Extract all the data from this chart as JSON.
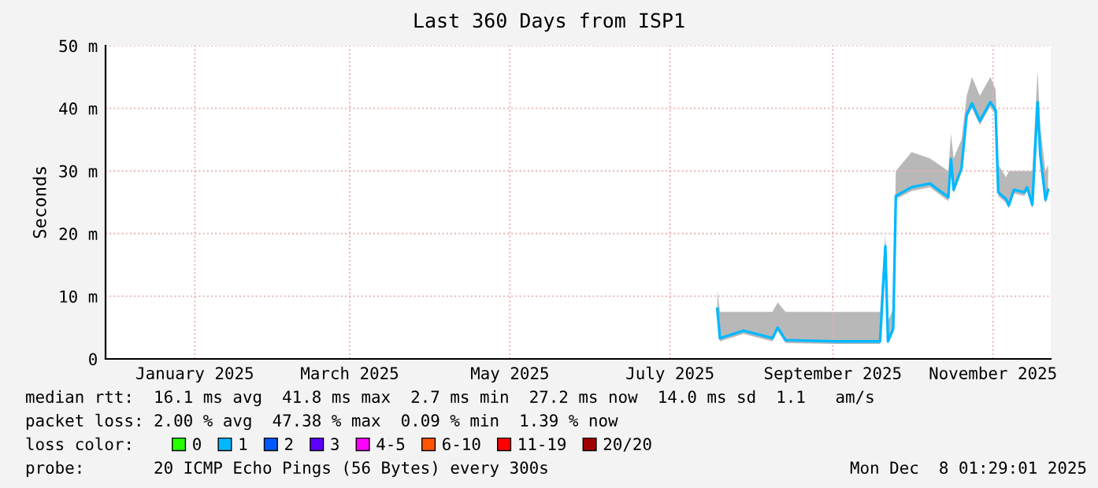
{
  "chart_data": {
    "type": "line",
    "title": "Last 360 Days from ISP1",
    "ylabel": "Seconds",
    "xlim": [
      "2024-12-13",
      "2025-12-08"
    ],
    "xticks": [
      {
        "value": "2025-01-16",
        "label": "January 2025"
      },
      {
        "value": "2025-03-16",
        "label": "March 2025"
      },
      {
        "value": "2025-05-16",
        "label": "May 2025"
      },
      {
        "value": "2025-07-16",
        "label": "July 2025"
      },
      {
        "value": "2025-09-16",
        "label": "September 2025"
      },
      {
        "value": "2025-11-16",
        "label": "November 2025"
      }
    ],
    "ylim": [
      0,
      50
    ],
    "yticks": [
      0,
      {
        "value": 10,
        "label": "10 m"
      },
      {
        "value": 20,
        "label": "20 m"
      },
      {
        "value": 30,
        "label": "30 m"
      },
      {
        "value": 40,
        "label": "40 m"
      },
      {
        "value": 50,
        "label": "50 m"
      }
    ],
    "grid": true,
    "legend": "bottom",
    "legend_title": "loss color:",
    "line_style": "solid",
    "series": [
      {
        "name": "0",
        "color": "#26ff00"
      },
      {
        "name": "1",
        "color": "#00b8ff",
        "x": [
          "2025-08-03",
          "2025-08-04",
          "2025-08-13",
          "2025-08-24",
          "2025-08-26",
          "2025-08-29",
          "2025-09-17",
          "2025-10-04",
          "2025-10-06",
          "2025-10-07",
          "2025-10-09",
          "2025-10-10",
          "2025-10-16",
          "2025-10-23",
          "2025-10-30",
          "2025-10-31",
          "2025-11-01",
          "2025-11-04",
          "2025-11-06",
          "2025-11-08",
          "2025-11-11",
          "2025-11-15",
          "2025-11-17",
          "2025-11-18",
          "2025-11-21",
          "2025-11-22",
          "2025-11-24",
          "2025-11-28",
          "2025-11-29",
          "2025-12-01",
          "2025-12-03",
          "2025-12-04",
          "2025-12-06",
          "2025-12-07"
        ],
        "values": [
          8,
          3.3,
          4.5,
          3.3,
          5,
          3,
          2.8,
          2.8,
          18,
          2.8,
          4.8,
          26,
          27.4,
          28,
          25.8,
          31.9,
          27,
          30.4,
          39,
          40.8,
          38,
          41,
          39.7,
          26.6,
          25.5,
          24.5,
          27,
          26.6,
          27.4,
          24.6,
          41,
          32.6,
          25.4,
          27
        ],
        "lower": [
          7.5,
          2.8,
          4,
          2.8,
          4.5,
          2.5,
          2.4,
          2.4,
          17,
          2.4,
          4.3,
          25.5,
          26.8,
          27.4,
          25.2,
          31,
          26.4,
          29.8,
          38.4,
          40,
          37.3,
          40.3,
          39,
          26,
          24.9,
          24,
          26.4,
          26,
          26.8,
          24,
          40,
          32,
          24.8,
          26.4
        ],
        "upper": [
          11,
          7.5,
          7.5,
          7.5,
          9,
          7.5,
          7.5,
          7.5,
          20,
          6,
          8,
          30,
          33,
          32,
          30,
          36,
          32,
          35,
          42,
          45,
          42,
          45,
          43,
          31,
          29,
          30,
          30,
          30,
          30,
          30,
          46,
          37,
          30,
          31
        ]
      },
      {
        "name": "2",
        "color": "#0059ff"
      },
      {
        "name": "3",
        "color": "#5e00ff"
      },
      {
        "name": "4-5",
        "color": "#ff00ff"
      },
      {
        "name": "6-10",
        "color": "#ff5500"
      },
      {
        "name": "11-19",
        "color": "#ff0000"
      },
      {
        "name": "20/20",
        "color": "#a10000"
      }
    ],
    "annotations": [
      "median rtt:  16.1 ms avg  41.8 ms max  2.7 ms min  27.2 ms now  14.0 ms sd  1.1   am/s",
      "packet loss: 2.00 % avg  47.38 % max  0.09 % min  1.39 % now",
      "probe:       20 ICMP Echo Pings (56 Bytes) every 300s",
      "Mon Dec  8 01:29:01 2025"
    ]
  }
}
